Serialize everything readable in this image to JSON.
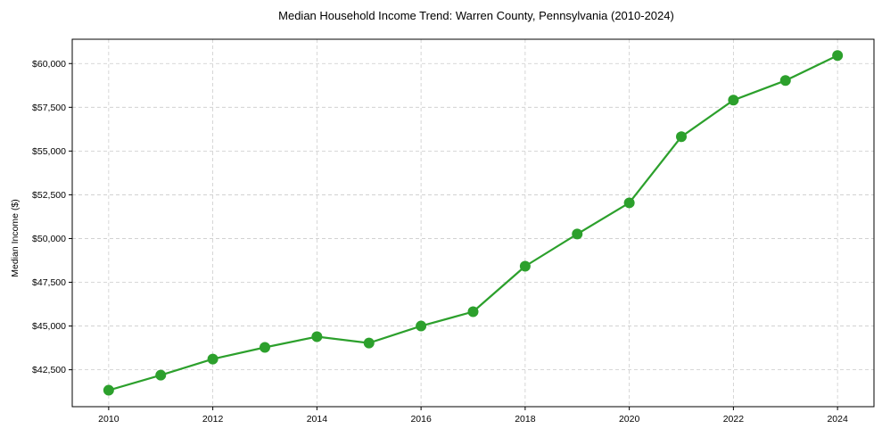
{
  "chart_data": {
    "type": "line",
    "title": "Median Household Income Trend: Warren County, Pennsylvania (2010-2024)",
    "xlabel": "",
    "ylabel": "Median Income ($)",
    "x": [
      2010,
      2011,
      2012,
      2013,
      2014,
      2015,
      2016,
      2017,
      2018,
      2019,
      2020,
      2021,
      2022,
      2023,
      2024
    ],
    "series": [
      {
        "name": "Median Household Income",
        "color": "#2ca02c",
        "marker": "circle",
        "values": [
          41330,
          42190,
          43110,
          43780,
          44390,
          44030,
          45000,
          45820,
          48420,
          50260,
          52040,
          55820,
          57910,
          59030,
          60460
        ]
      }
    ],
    "xticks": [
      2010,
      2012,
      2014,
      2016,
      2018,
      2020,
      2022,
      2024
    ],
    "xtick_labels": [
      "2010",
      "2012",
      "2014",
      "2016",
      "2018",
      "2020",
      "2022",
      "2024"
    ],
    "yticks": [
      42500,
      45000,
      47500,
      50000,
      52500,
      55000,
      57500,
      60000
    ],
    "ytick_labels": [
      "$42,500",
      "$45,000",
      "$47,500",
      "$50,000",
      "$52,500",
      "$55,000",
      "$57,500",
      "$60,000"
    ],
    "xlim": [
      2009.3,
      2024.7
    ],
    "ylim": [
      40390,
      61390
    ],
    "grid": true,
    "legend": null
  }
}
